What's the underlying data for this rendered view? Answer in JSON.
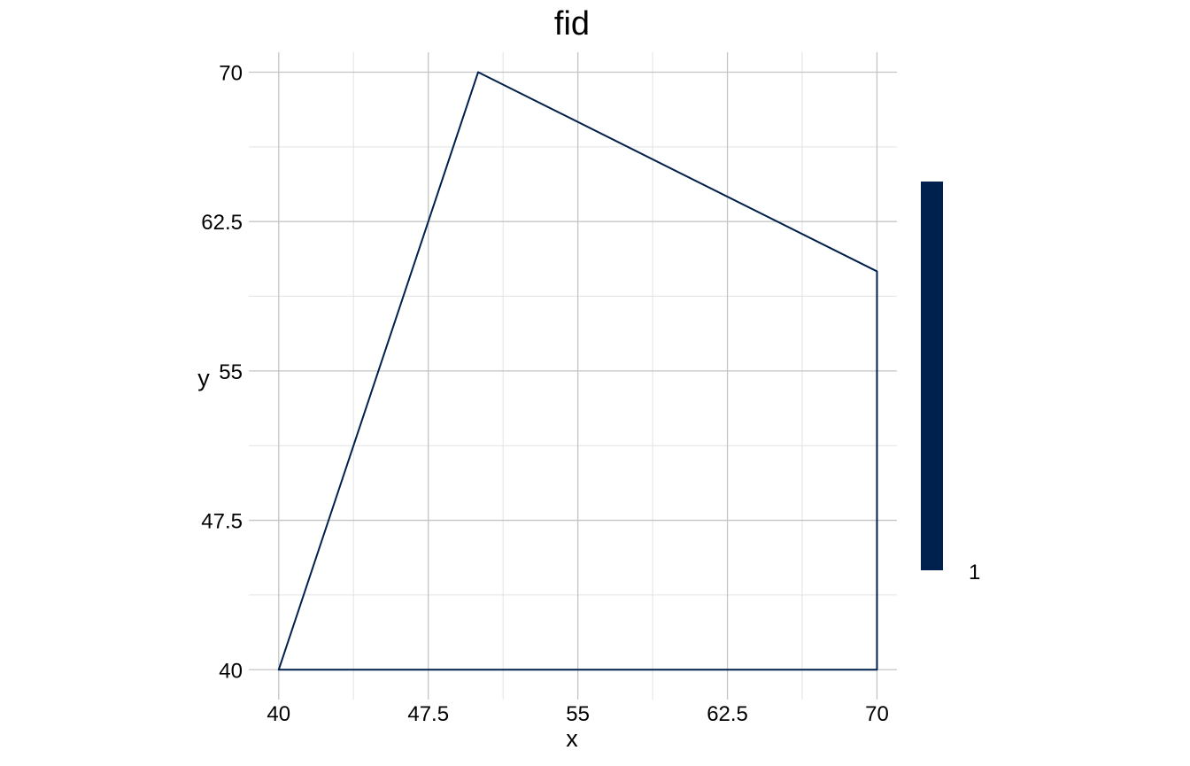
{
  "chart_data": {
    "type": "polygon",
    "title": "fid",
    "xlabel": "x",
    "ylabel": "y",
    "xlim": [
      38.5,
      71
    ],
    "ylim": [
      38.5,
      71
    ],
    "x_ticks": [
      40,
      47.5,
      55,
      62.5,
      70
    ],
    "y_ticks": [
      40,
      47.5,
      55,
      62.5,
      70
    ],
    "x_tick_labels": [
      "40",
      "47.5",
      "55",
      "62.5",
      "70"
    ],
    "y_tick_labels": [
      "40",
      "47.5",
      "55",
      "62.5",
      "70"
    ],
    "grid": true,
    "series": [
      {
        "polygon": [
          [
            40,
            40
          ],
          [
            50,
            70
          ],
          [
            70,
            60
          ],
          [
            70,
            40
          ]
        ],
        "color": "#00204d"
      }
    ],
    "colorbar": {
      "position": "right",
      "color": "#00204d",
      "labels": [
        "1"
      ]
    }
  }
}
